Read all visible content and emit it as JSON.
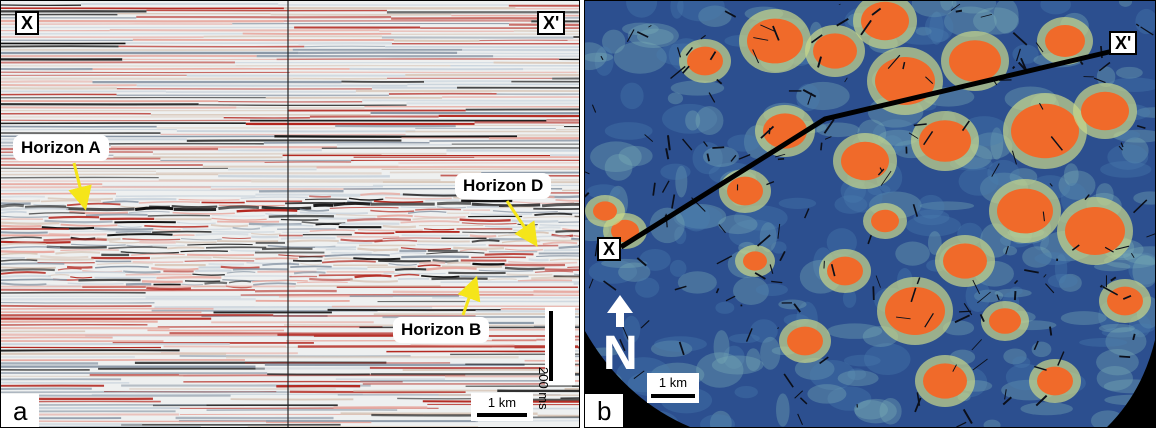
{
  "panel_a": {
    "letter": "a",
    "section_start_label": "X",
    "section_end_label": "X'",
    "horizons": {
      "a": "Horizon A",
      "b": "Horizon B",
      "d": "Horizon D"
    },
    "vertical_scale_label": "200 ms",
    "horizontal_scale_label": "1 km"
  },
  "panel_b": {
    "letter": "b",
    "line_start_label": "X",
    "line_end_label": "X'",
    "north_label": "N",
    "scale_label": "1 km"
  },
  "colors": {
    "seismic_red": "#b3261e",
    "seismic_black": "#111111",
    "seismic_grey": "#8a97a6",
    "attribute_blue": "#2c4f8f",
    "attribute_orange": "#f06a2a",
    "arrow_yellow": "#f5e51a"
  }
}
